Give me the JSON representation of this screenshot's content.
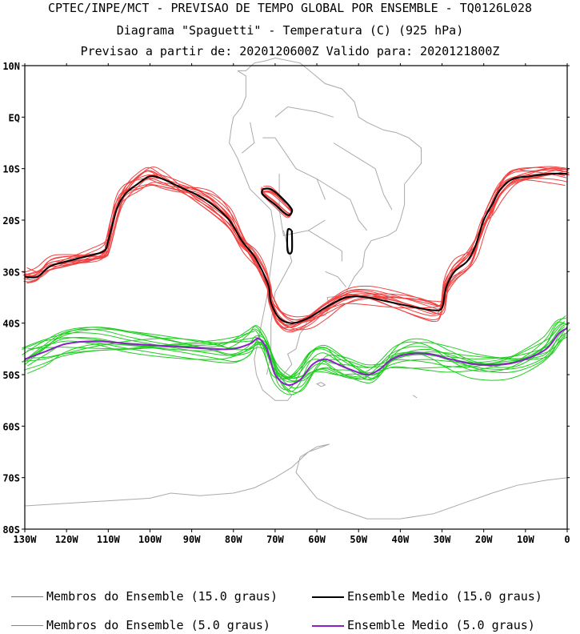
{
  "header": {
    "line1": "CPTEC/INPE/MCT - PREVISAO DE TEMPO GLOBAL POR ENSEMBLE - TQ0126L028",
    "line2": "Diagrama \"Spaguetti\" - Temperatura (C) (925 hPa)",
    "line3": "Previsao a partir de: 2020120600Z  Valido para: 2020121800Z"
  },
  "map": {
    "lon_range": [
      -130,
      0
    ],
    "lat_range": [
      -80,
      10
    ],
    "lat_ticks": [
      {
        "value": 10,
        "label": "10N"
      },
      {
        "value": 0,
        "label": "EQ"
      },
      {
        "value": -10,
        "label": "10S"
      },
      {
        "value": -20,
        "label": "20S"
      },
      {
        "value": -30,
        "label": "30S"
      },
      {
        "value": -40,
        "label": "40S"
      },
      {
        "value": -50,
        "label": "50S"
      },
      {
        "value": -60,
        "label": "60S"
      },
      {
        "value": -70,
        "label": "70S"
      },
      {
        "value": -80,
        "label": "80S"
      }
    ],
    "lon_ticks": [
      {
        "value": -130,
        "label": "130W"
      },
      {
        "value": -120,
        "label": "120W"
      },
      {
        "value": -110,
        "label": "110W"
      },
      {
        "value": -100,
        "label": "100W"
      },
      {
        "value": -90,
        "label": "90W"
      },
      {
        "value": -80,
        "label": "80W"
      },
      {
        "value": -70,
        "label": "70W"
      },
      {
        "value": -60,
        "label": "60W"
      },
      {
        "value": -50,
        "label": "50W"
      },
      {
        "value": -40,
        "label": "40W"
      },
      {
        "value": -30,
        "label": "30W"
      },
      {
        "value": -20,
        "label": "20W"
      },
      {
        "value": -10,
        "label": "10W"
      },
      {
        "value": 0,
        "label": "0"
      }
    ],
    "colors": {
      "members_15": "#f04040",
      "mean_15": "#000000",
      "members_5": "#22cc22",
      "mean_5": "#8c1fc9",
      "coast": "#aaaaaa"
    },
    "mean_15_contour": [
      [
        -130,
        -31
      ],
      [
        -127,
        -31
      ],
      [
        -124,
        -29
      ],
      [
        -120,
        -28
      ],
      [
        -115,
        -27
      ],
      [
        -111,
        -26
      ],
      [
        -110,
        -24
      ],
      [
        -108,
        -18
      ],
      [
        -106,
        -15
      ],
      [
        -103,
        -13
      ],
      [
        -100,
        -11.5
      ],
      [
        -97,
        -12
      ],
      [
        -93,
        -13.5
      ],
      [
        -89,
        -15
      ],
      [
        -85,
        -17
      ],
      [
        -81,
        -20
      ],
      [
        -78,
        -24
      ],
      [
        -75,
        -27
      ],
      [
        -73,
        -30
      ],
      [
        -71.5,
        -33
      ],
      [
        -71,
        -36
      ],
      [
        -69,
        -39
      ],
      [
        -66,
        -40
      ],
      [
        -62,
        -39
      ],
      [
        -58,
        -37
      ],
      [
        -53,
        -35
      ],
      [
        -48,
        -35
      ],
      [
        -42,
        -36
      ],
      [
        -36,
        -37
      ],
      [
        -32,
        -37.5
      ],
      [
        -30,
        -37
      ],
      [
        -29,
        -33
      ],
      [
        -27,
        -30
      ],
      [
        -24,
        -28
      ],
      [
        -22,
        -25
      ],
      [
        -20,
        -20
      ],
      [
        -18,
        -17
      ],
      [
        -16,
        -14
      ],
      [
        -13,
        -12
      ],
      [
        -9,
        -11.5
      ],
      [
        -4,
        -11
      ],
      [
        0,
        -11
      ]
    ],
    "mean_15_andes": [
      [
        -73,
        -14
      ],
      [
        -71,
        -14
      ],
      [
        -68,
        -16
      ],
      [
        -66,
        -18
      ],
      [
        -67,
        -19
      ],
      [
        -70,
        -17
      ],
      [
        -73,
        -15
      ],
      [
        -73,
        -14
      ]
    ],
    "mean_15_andes2": [
      [
        -66,
        -22
      ],
      [
        -66,
        -26
      ],
      [
        -67,
        -26
      ],
      [
        -67,
        -22
      ],
      [
        -66,
        -22
      ]
    ],
    "mean_5_contour": [
      [
        -130,
        -47
      ],
      [
        -125,
        -45.5
      ],
      [
        -120,
        -44
      ],
      [
        -113,
        -43.5
      ],
      [
        -105,
        -44
      ],
      [
        -95,
        -44.5
      ],
      [
        -85,
        -45
      ],
      [
        -80,
        -45
      ],
      [
        -76,
        -44
      ],
      [
        -74,
        -43
      ],
      [
        -72,
        -45
      ],
      [
        -70,
        -50
      ],
      [
        -67,
        -52
      ],
      [
        -64,
        -51
      ],
      [
        -61,
        -48
      ],
      [
        -58,
        -47
      ],
      [
        -55,
        -48
      ],
      [
        -52,
        -49
      ],
      [
        -48,
        -50
      ],
      [
        -45,
        -49
      ],
      [
        -42,
        -47
      ],
      [
        -38,
        -46
      ],
      [
        -33,
        -46
      ],
      [
        -28,
        -47
      ],
      [
        -22,
        -48
      ],
      [
        -15,
        -48
      ],
      [
        -10,
        -47
      ],
      [
        -5,
        -45
      ],
      [
        -2,
        -42
      ],
      [
        0,
        -41
      ]
    ]
  },
  "legend": {
    "members_15_label": "Membros do Ensemble (15.0 graus)",
    "mean_15_label": "Ensemble Medio (15.0 graus)",
    "members_5_label": "Membros do Ensemble (5.0 graus)",
    "mean_5_label": "Ensemble Medio (5.0 graus)"
  }
}
